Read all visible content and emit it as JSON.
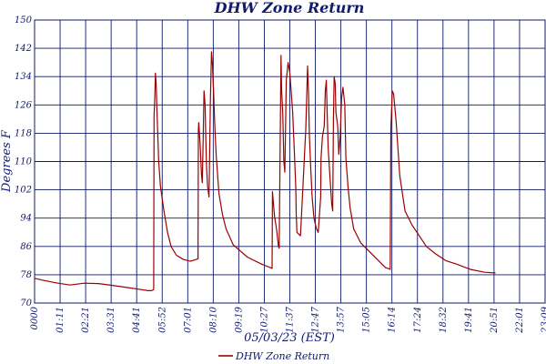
{
  "chart_data": {
    "type": "line",
    "title": "DHW Zone Return",
    "xlabel": "05/03/23 (EST)",
    "ylabel": "Degrees F",
    "ylim": [
      70,
      150
    ],
    "yticks": [
      70,
      78,
      86,
      94,
      102,
      110,
      118,
      126,
      134,
      142,
      150
    ],
    "xlim": [
      0,
      1440
    ],
    "xtick_labels": [
      "0000",
      "01:11",
      "02:21",
      "03:31",
      "04:41",
      "05:52",
      "07:01",
      "08:10",
      "09:19",
      "10:27",
      "11:37",
      "12:47",
      "13:57",
      "15:05",
      "16:14",
      "17:24",
      "18:32",
      "19:41",
      "20:51",
      "22:01",
      "23:09"
    ],
    "grid": true,
    "legend_position": "bottom-center",
    "colors": {
      "series": "#9b0000",
      "grid": "#0d1866",
      "text": "#111a6e"
    },
    "series": [
      {
        "name": "DHW Zone Return",
        "x": [
          0,
          20,
          60,
          100,
          140,
          180,
          220,
          260,
          300,
          320,
          330,
          336,
          337,
          339,
          341,
          343,
          345,
          350,
          355,
          365,
          375,
          385,
          400,
          420,
          440,
          455,
          461,
          462,
          463,
          467,
          471,
          473,
          476,
          478,
          481,
          483,
          485,
          488,
          492,
          496,
          499,
          502,
          503,
          505,
          508,
          512,
          520,
          530,
          540,
          560,
          600,
          640,
          665,
          670,
          671,
          673,
          677,
          683,
          688,
          690,
          691,
          693,
          695,
          697,
          700,
          702,
          703,
          706,
          710,
          715,
          720,
          728,
          733,
          737,
          738,
          740,
          750,
          765,
          770,
          771,
          773,
          775,
          779,
          783,
          788,
          795,
          800,
          807,
          808,
          812,
          817,
          820,
          823,
          825,
          828,
          833,
          838,
          841,
          843,
          845,
          848,
          850,
          855,
          858,
          862,
          866,
          870,
          875,
          878,
          884,
          890,
          900,
          920,
          950,
          975,
          990,
          1002,
          1003,
          1005,
          1009,
          1013,
          1020,
          1030,
          1045,
          1065,
          1085,
          1105,
          1130,
          1160,
          1190,
          1230,
          1270,
          1300
        ],
        "y": [
          77,
          76.5,
          75.7,
          75.1,
          75.6,
          75.5,
          75,
          74.4,
          73.8,
          73.5,
          73.5,
          73.8,
          123,
          128,
          135,
          132,
          125,
          110,
          103,
          96,
          90,
          86,
          83.5,
          82.3,
          81.8,
          82.3,
          82.5,
          119,
          121,
          115,
          106,
          104,
          118,
          130,
          126,
          116,
          109,
          103,
          100,
          127,
          141,
          137,
          134,
          130,
          121,
          112,
          101,
          95,
          91,
          86.5,
          83,
          81,
          80,
          79.8,
          101.5,
          99,
          94.5,
          90.5,
          86,
          85.5,
          97,
          118,
          140,
          130,
          124,
          115,
          110,
          107,
          133,
          138,
          135,
          124,
          112,
          102,
          95,
          90,
          89,
          119,
          137,
          134,
          129,
          118,
          108,
          100,
          94,
          91,
          90,
          100,
          111,
          117,
          120,
          130,
          133,
          125,
          114,
          106,
          98,
          96,
          122,
          134,
          132,
          124,
          120,
          112,
          117,
          128,
          131,
          126,
          111,
          103,
          97,
          91,
          87,
          84,
          81.5,
          80,
          79.6,
          79.5,
          119,
          130,
          129,
          121,
          106,
          96,
          92,
          89,
          86,
          84,
          82,
          81,
          79.5,
          78.7,
          78.5
        ]
      }
    ]
  }
}
